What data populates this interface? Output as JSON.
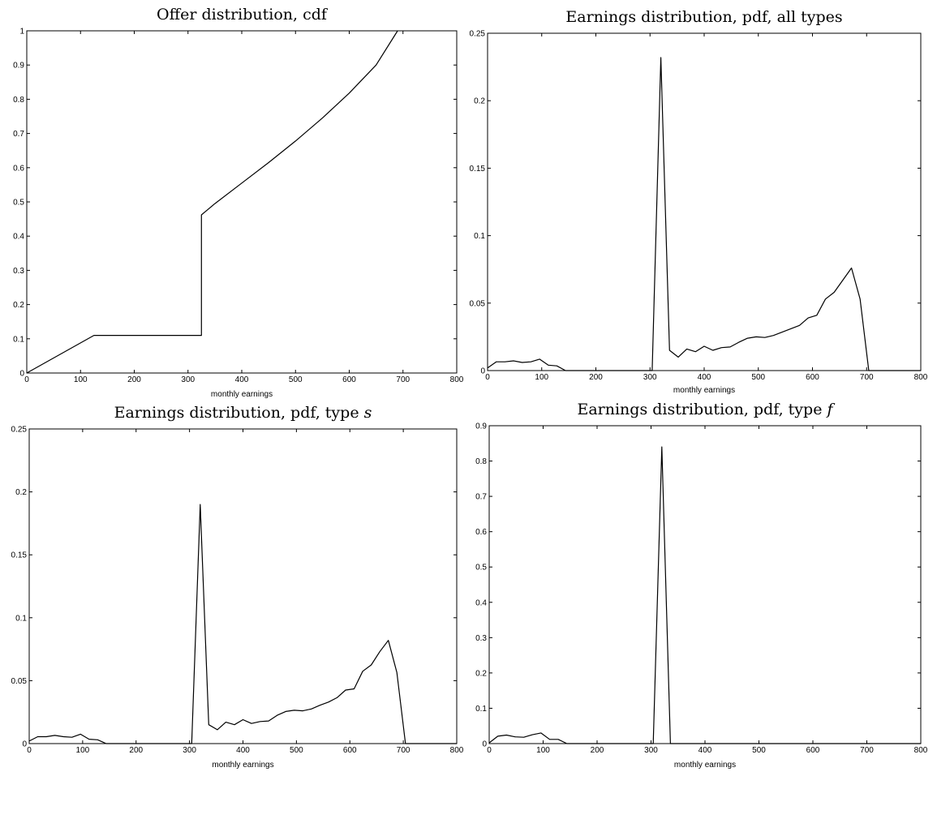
{
  "chart_data": [
    {
      "type": "line",
      "title": "Offer distribution, cdf",
      "xlabel": "monthly earnings",
      "ylabel": "",
      "xlim": [
        0,
        800
      ],
      "ylim": [
        0,
        1
      ],
      "grid": false,
      "xticks": [
        "0",
        "100",
        "200",
        "300",
        "400",
        "500",
        "600",
        "700",
        "800"
      ],
      "yticks": [
        "0",
        "0.1",
        "0.2",
        "0.3",
        "0.4",
        "0.5",
        "0.6",
        "0.7",
        "0.8",
        "0.9",
        "1"
      ],
      "x": [
        0,
        125,
        325,
        325,
        350,
        400,
        450,
        500,
        550,
        600,
        650,
        690
      ],
      "y": [
        0,
        0.11,
        0.11,
        0.462,
        0.495,
        0.555,
        0.615,
        0.678,
        0.745,
        0.818,
        0.9,
        1.0
      ]
    },
    {
      "type": "line",
      "title": "Earnings distribution, pdf, all types",
      "xlabel": "monthly earnings",
      "ylabel": "",
      "xlim": [
        0,
        800
      ],
      "ylim": [
        0,
        0.25
      ],
      "grid": false,
      "xticks": [
        "0",
        "100",
        "200",
        "300",
        "400",
        "500",
        "600",
        "700",
        "800"
      ],
      "yticks": [
        "0",
        "0.05",
        "0.1",
        "0.15",
        "0.2",
        "0.25"
      ],
      "x": [
        0,
        16,
        32,
        48,
        64,
        80,
        96,
        112,
        128,
        144,
        160,
        176,
        192,
        208,
        224,
        240,
        256,
        272,
        288,
        304,
        320,
        336,
        352,
        368,
        384,
        400,
        416,
        432,
        448,
        464,
        480,
        496,
        512,
        528,
        544,
        560,
        576,
        592,
        608,
        624,
        640,
        656,
        672,
        688,
        704,
        720,
        736,
        752,
        768,
        784,
        800
      ],
      "y": [
        0.002,
        0.0065,
        0.0065,
        0.0072,
        0.006,
        0.0065,
        0.0085,
        0.004,
        0.0035,
        0,
        0,
        0,
        0,
        0,
        0,
        0,
        0,
        0,
        0,
        0,
        0.232,
        0.015,
        0.01,
        0.016,
        0.014,
        0.018,
        0.015,
        0.017,
        0.0175,
        0.021,
        0.024,
        0.025,
        0.0245,
        0.026,
        0.0285,
        0.031,
        0.0335,
        0.039,
        0.041,
        0.053,
        0.058,
        0.067,
        0.076,
        0.053,
        0,
        0,
        0,
        0,
        0,
        0,
        0
      ]
    },
    {
      "type": "line",
      "title": "Earnings distribution, pdf, type ",
      "title_var": "s",
      "xlabel": "monthly earnings",
      "ylabel": "",
      "xlim": [
        0,
        800
      ],
      "ylim": [
        0,
        0.25
      ],
      "grid": false,
      "xticks": [
        "0",
        "100",
        "200",
        "300",
        "400",
        "500",
        "600",
        "700",
        "800"
      ],
      "yticks": [
        "0",
        "0.05",
        "0.1",
        "0.15",
        "0.2",
        "0.25"
      ],
      "x": [
        0,
        16,
        32,
        48,
        64,
        80,
        96,
        112,
        128,
        144,
        160,
        176,
        192,
        208,
        224,
        240,
        256,
        272,
        288,
        304,
        320,
        336,
        352,
        368,
        384,
        400,
        416,
        432,
        448,
        464,
        480,
        496,
        512,
        528,
        544,
        560,
        576,
        592,
        608,
        624,
        640,
        656,
        672,
        688,
        704,
        720,
        736,
        752,
        768,
        784,
        800
      ],
      "y": [
        0.002,
        0.0055,
        0.0055,
        0.0065,
        0.0055,
        0.005,
        0.0075,
        0.0035,
        0.003,
        0,
        0,
        0,
        0,
        0,
        0,
        0,
        0,
        0,
        0,
        0,
        0.19,
        0.015,
        0.011,
        0.017,
        0.015,
        0.019,
        0.016,
        0.0175,
        0.018,
        0.0225,
        0.0255,
        0.0265,
        0.026,
        0.0275,
        0.0305,
        0.033,
        0.0365,
        0.0425,
        0.0435,
        0.0575,
        0.0625,
        0.073,
        0.082,
        0.0565,
        0,
        0,
        0,
        0,
        0,
        0,
        0
      ]
    },
    {
      "type": "line",
      "title": "Earnings distribution, pdf, type ",
      "title_var": "f",
      "xlabel": "monthly earnings",
      "ylabel": "",
      "xlim": [
        0,
        800
      ],
      "ylim": [
        0,
        0.9
      ],
      "grid": false,
      "xticks": [
        "0",
        "100",
        "200",
        "300",
        "400",
        "500",
        "600",
        "700",
        "800"
      ],
      "yticks": [
        "0",
        "0.1",
        "0.2",
        "0.3",
        "0.4",
        "0.5",
        "0.6",
        "0.7",
        "0.8",
        "0.9"
      ],
      "x": [
        0,
        16,
        32,
        48,
        64,
        80,
        96,
        112,
        128,
        144,
        160,
        176,
        192,
        208,
        224,
        240,
        256,
        272,
        288,
        304,
        320,
        336,
        352,
        368,
        384,
        400,
        416,
        432,
        448,
        464,
        480,
        496,
        512,
        528,
        544,
        560,
        576,
        592,
        608,
        624,
        640,
        656,
        672,
        688,
        704,
        720,
        736,
        752,
        768,
        784,
        800
      ],
      "y": [
        0.002,
        0.021,
        0.024,
        0.019,
        0.018,
        0.025,
        0.03,
        0.012,
        0.012,
        0,
        0,
        0,
        0,
        0,
        0,
        0,
        0,
        0,
        0,
        0,
        0.84,
        0,
        0,
        0,
        0,
        0,
        0,
        0,
        0,
        0,
        0,
        0,
        0,
        0,
        0,
        0,
        0,
        0,
        0,
        0,
        0,
        0,
        0,
        0,
        0,
        0,
        0,
        0,
        0,
        0,
        0
      ]
    }
  ]
}
